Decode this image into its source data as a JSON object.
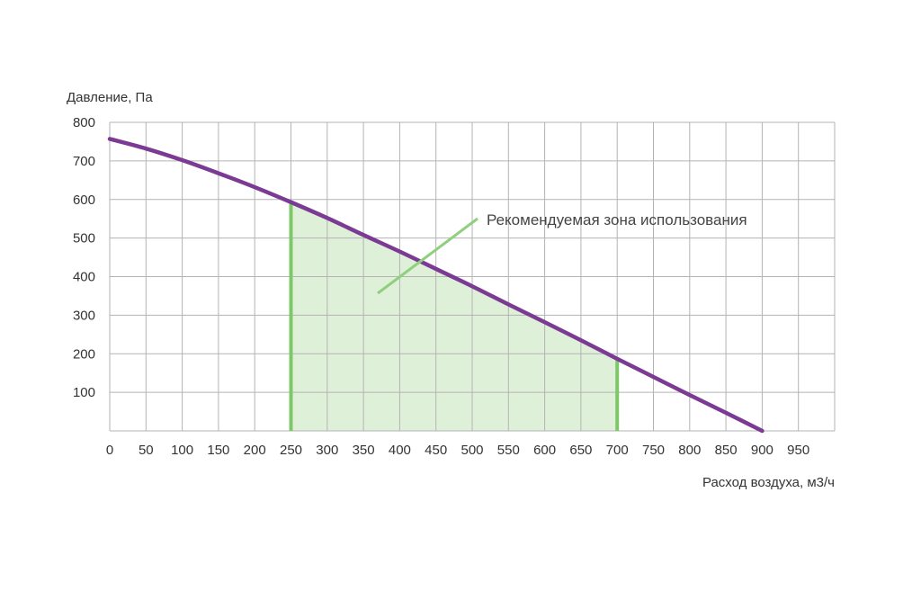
{
  "chart_data": {
    "type": "line",
    "title": "",
    "xlabel": "Расход воздуха, м3/ч",
    "ylabel": "Давление, Па",
    "xlim": [
      0,
      1000
    ],
    "ylim": [
      0,
      800
    ],
    "x_ticks": [
      "0",
      "50",
      "100",
      "150",
      "200",
      "250",
      "300",
      "350",
      "400",
      "450",
      "500",
      "550",
      "600",
      "650",
      "700",
      "750",
      "800",
      "850",
      "900",
      "950"
    ],
    "y_ticks": [
      "100",
      "200",
      "300",
      "400",
      "500",
      "600",
      "700",
      "800"
    ],
    "grid": true,
    "series": [
      {
        "name": "",
        "color": "#7b3a93",
        "x": [
          0,
          50,
          100,
          150,
          200,
          250,
          300,
          350,
          400,
          450,
          500,
          550,
          600,
          650,
          700,
          750,
          800,
          850,
          900
        ],
        "y": [
          757,
          732,
          702,
          668,
          632,
          593,
          552,
          508,
          465,
          420,
          375,
          328,
          282,
          235,
          187,
          140,
          93,
          47,
          0
        ]
      }
    ],
    "recommended_zone": {
      "label": "Рекомендуемая зона использования",
      "x_start": 250,
      "x_end": 700,
      "fill_color": "#dff0d8",
      "edge_color": "#7ec86a",
      "pointer_color": "#8fd07f"
    }
  }
}
